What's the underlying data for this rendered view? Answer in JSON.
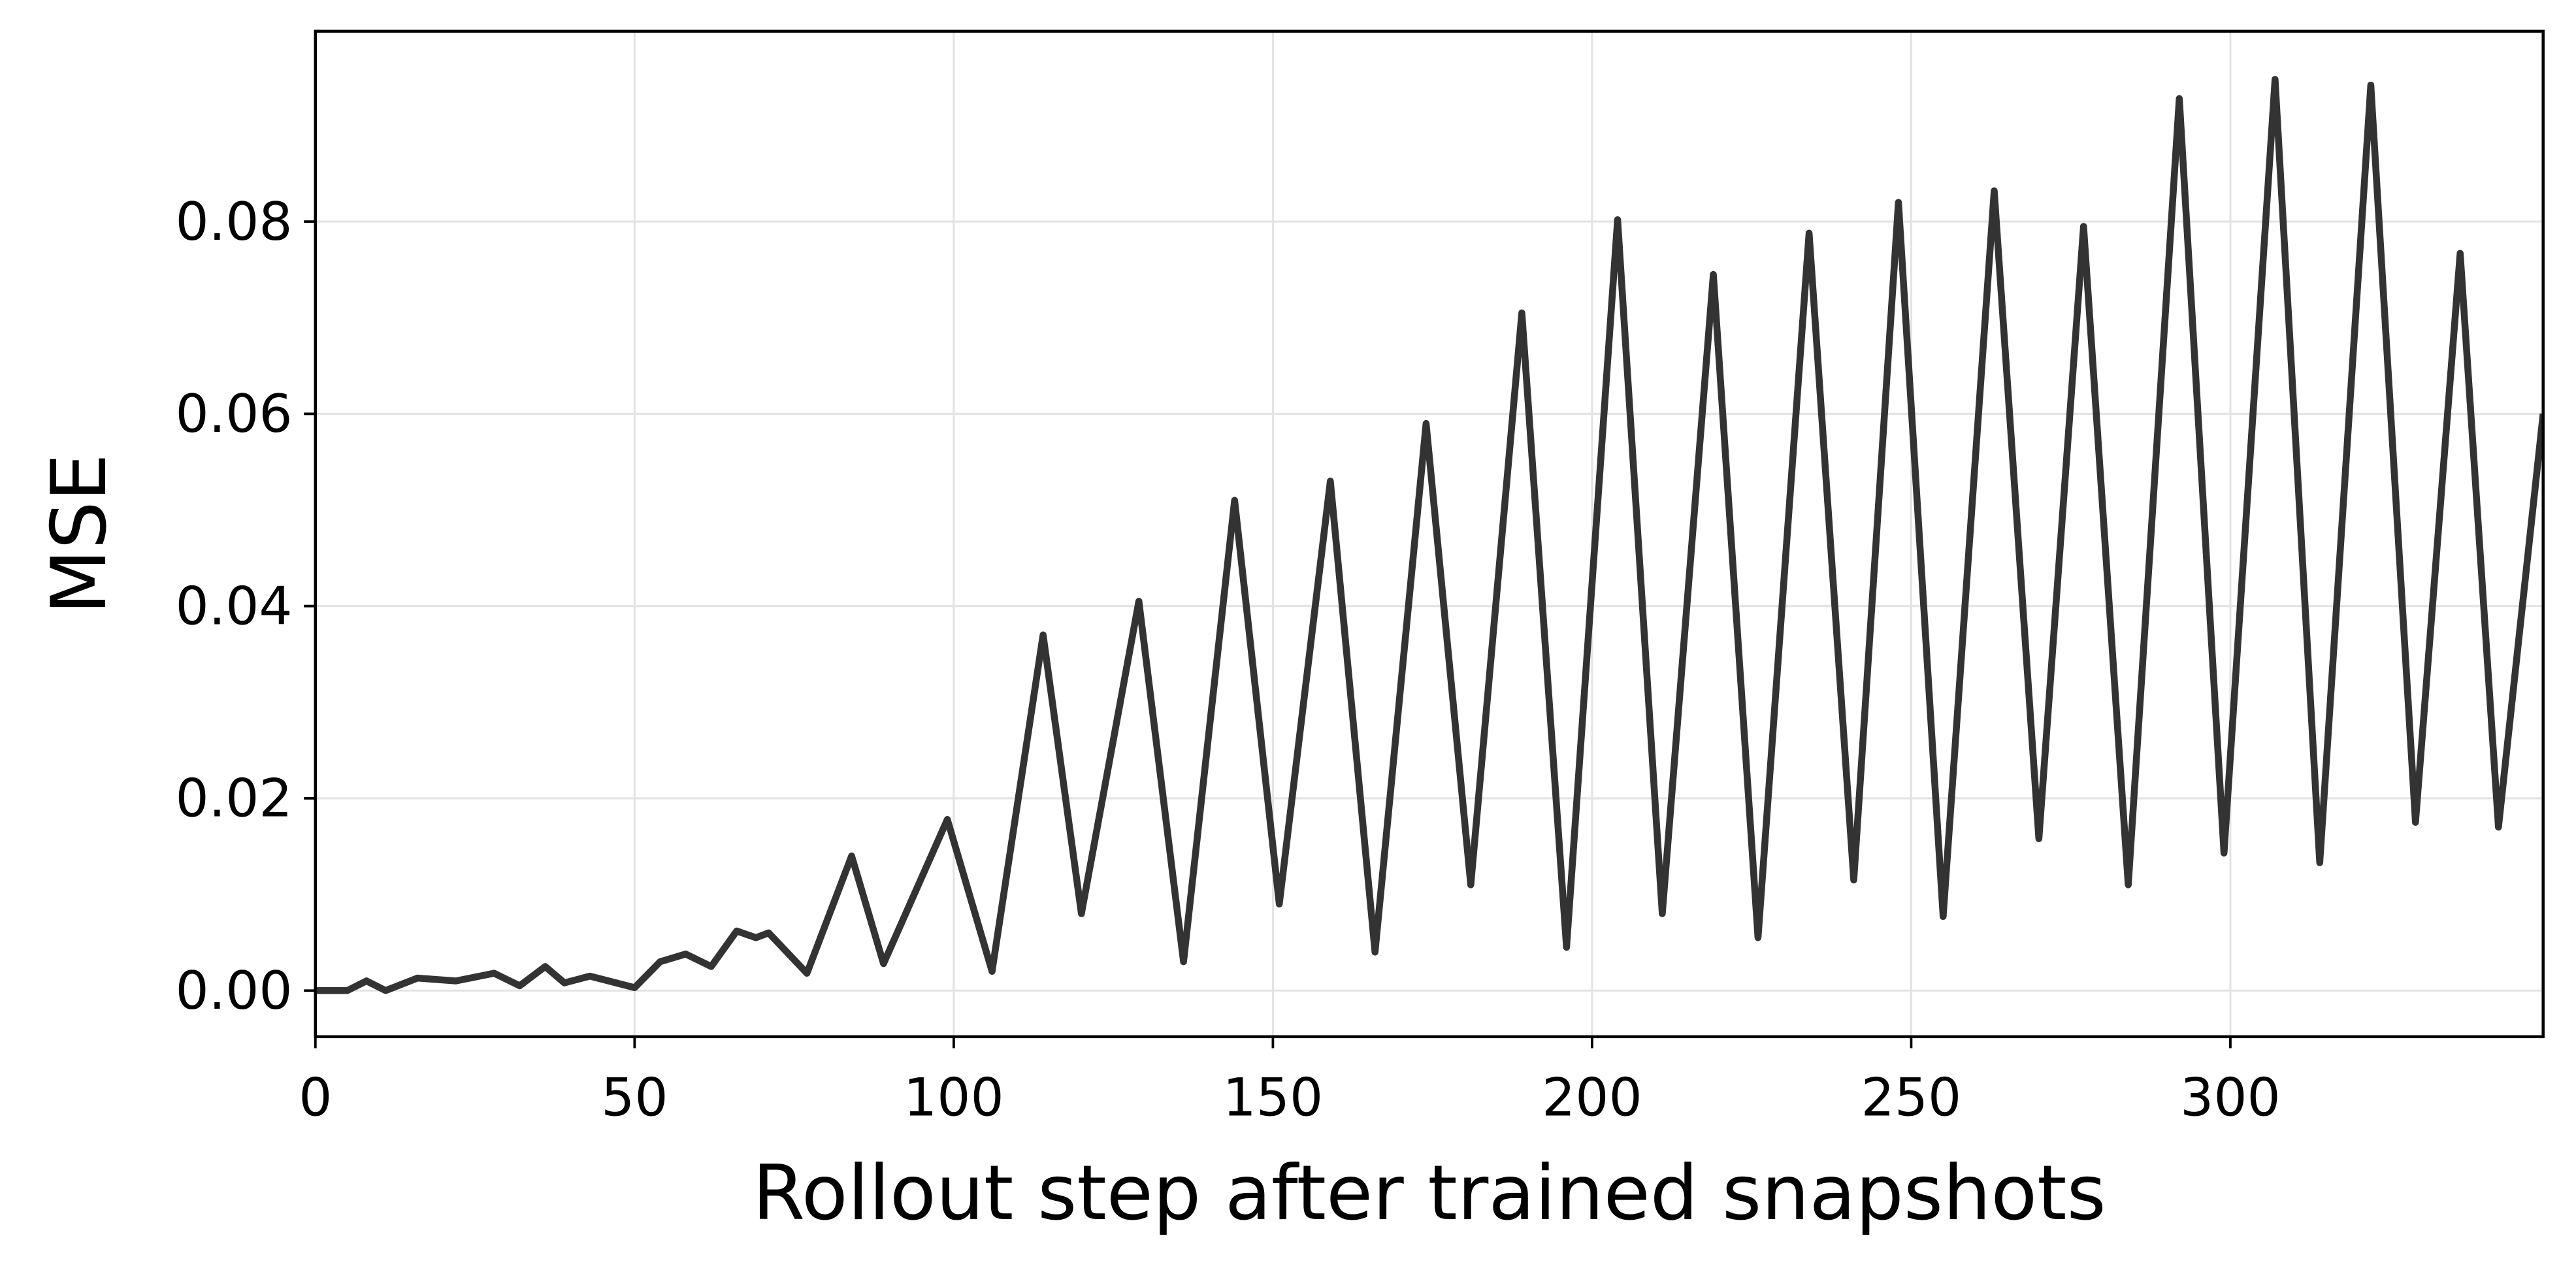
{
  "chart_data": {
    "type": "line",
    "xlabel": "Rollout step after trained snapshots",
    "ylabel": "MSE",
    "x": [
      0,
      5,
      8,
      11,
      16,
      22,
      28,
      32,
      36,
      39,
      43,
      50,
      54,
      58,
      62,
      66,
      69,
      71,
      77,
      84,
      89,
      99,
      106,
      114,
      120,
      129,
      136,
      144,
      151,
      159,
      166,
      174,
      181,
      189,
      196,
      204,
      211,
      219,
      226,
      234,
      241,
      248,
      255,
      263,
      270,
      277,
      284,
      292,
      299,
      307,
      314,
      322,
      329,
      336,
      342,
      349
    ],
    "series": [
      {
        "name": "MSE",
        "color": "#333333",
        "values": [
          0,
          0,
          0.001,
          0,
          0.0013,
          0.001,
          0.0018,
          0.0005,
          0.0025,
          0.0008,
          0.0015,
          0.0003,
          0.003,
          0.0038,
          0.0025,
          0.0062,
          0.0055,
          0.006,
          0.0018,
          0.014,
          0.0028,
          0.0178,
          0.002,
          0.037,
          0.008,
          0.0405,
          0.003,
          0.051,
          0.009,
          0.053,
          0.004,
          0.059,
          0.011,
          0.0705,
          0.0045,
          0.0802,
          0.008,
          0.0745,
          0.0055,
          0.0788,
          0.0115,
          0.082,
          0.0077,
          0.0832,
          0.0158,
          0.0795,
          0.011,
          0.0928,
          0.0143,
          0.0948,
          0.0133,
          0.0942,
          0.0175,
          0.0767,
          0.017,
          0.06
        ]
      }
    ],
    "xlim": [
      0,
      349
    ],
    "ylim": [
      -0.0048,
      0.0998
    ],
    "xticks": [
      0,
      50,
      100,
      150,
      200,
      250,
      300
    ],
    "yticks": [
      {
        "value": 0,
        "label": "0.00"
      },
      0.02,
      0.04,
      0.06,
      0.08
    ],
    "grid": true
  }
}
